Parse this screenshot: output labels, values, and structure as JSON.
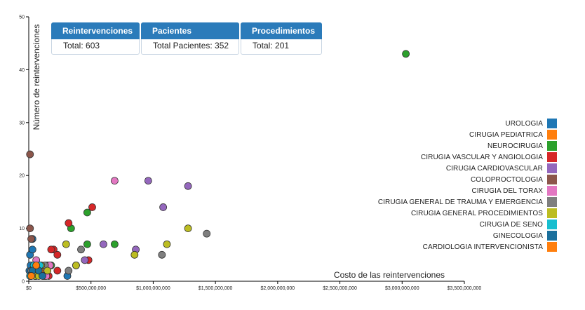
{
  "kpis": [
    {
      "title": "Reintervenciones",
      "value": "Total: 603"
    },
    {
      "title": "Pacientes",
      "value": "Total Pacientes: 352"
    },
    {
      "title": "Procedimientos",
      "value": "Total: 201"
    }
  ],
  "chart_data": {
    "type": "scatter",
    "title": "",
    "xlabel": "Costo de las reintervenciones",
    "ylabel": "Número de reintervenciones",
    "xlim": [
      0,
      3500000000
    ],
    "ylim": [
      0,
      50
    ],
    "x_ticks": [
      0,
      500000000,
      1000000000,
      1500000000,
      2000000000,
      2500000000,
      3000000000,
      3500000000
    ],
    "x_tick_labels": [
      "$0",
      "$500,000,000",
      "$1,000,000,000",
      "$1,500,000,000",
      "$2,000,000,000",
      "$2,500,000,000",
      "$3,000,000,000",
      "$3,500,000,000"
    ],
    "y_ticks": [
      0,
      10,
      20,
      30,
      40,
      50
    ],
    "y_tick_labels": [
      "0",
      "10",
      "20",
      "30",
      "40",
      "50"
    ],
    "legend_position": "right",
    "series": [
      {
        "name": "UROLOGIA",
        "color": "#1f77b4",
        "points": [
          [
            10000000,
            5
          ],
          [
            30000000,
            6
          ],
          [
            30000000,
            8
          ],
          [
            20000000,
            1
          ],
          [
            5000000,
            2
          ],
          [
            15000000,
            3
          ],
          [
            35000000,
            2
          ],
          [
            310000000,
            1
          ],
          [
            50000000,
            1
          ]
        ]
      },
      {
        "name": "CIRUGIA PEDIATRICA",
        "color": "#ff7f0e",
        "points": [
          [
            60000000,
            1
          ],
          [
            40000000,
            2
          ],
          [
            120000000,
            1
          ],
          [
            90000000,
            2
          ]
        ]
      },
      {
        "name": "NEUROCIRUGIA",
        "color": "#2ca02c",
        "points": [
          [
            3030000000,
            43
          ],
          [
            470000000,
            13
          ],
          [
            340000000,
            10
          ],
          [
            470000000,
            7
          ],
          [
            690000000,
            7
          ],
          [
            130000000,
            1
          ],
          [
            180000000,
            3
          ]
        ]
      },
      {
        "name": "CIRUGIA VASCULAR Y ANGIOLOGIA",
        "color": "#d62728",
        "points": [
          [
            510000000,
            14
          ],
          [
            320000000,
            11
          ],
          [
            200000000,
            6
          ],
          [
            180000000,
            6
          ],
          [
            230000000,
            5
          ],
          [
            480000000,
            4
          ],
          [
            230000000,
            2
          ],
          [
            160000000,
            1
          ]
        ]
      },
      {
        "name": "CIRUGIA CARDIOVASCULAR",
        "color": "#9467bd",
        "points": [
          [
            960000000,
            19
          ],
          [
            1280000000,
            18
          ],
          [
            1080000000,
            14
          ],
          [
            600000000,
            7
          ],
          [
            860000000,
            6
          ],
          [
            450000000,
            4
          ],
          [
            380000000,
            3
          ],
          [
            80000000,
            2
          ]
        ]
      },
      {
        "name": "COLOPROCTOLOGIA",
        "color": "#8c564b",
        "points": [
          [
            10000000,
            24
          ],
          [
            10000000,
            10
          ],
          [
            20000000,
            8
          ],
          [
            60000000,
            2
          ],
          [
            150000000,
            3
          ]
        ]
      },
      {
        "name": "CIRUGIA DEL TORAX",
        "color": "#e377c2",
        "points": [
          [
            690000000,
            19
          ],
          [
            170000000,
            3
          ],
          [
            60000000,
            4
          ],
          [
            140000000,
            1
          ]
        ]
      },
      {
        "name": "CIRUGIA GENERAL DE TRAUMA Y EMERGENCIA",
        "color": "#7f7f7f",
        "points": [
          [
            1430000000,
            9
          ],
          [
            1070000000,
            5
          ],
          [
            420000000,
            6
          ],
          [
            320000000,
            2
          ],
          [
            130000000,
            3
          ],
          [
            20000000,
            2
          ]
        ]
      },
      {
        "name": "CIRUGIA GENERAL PROCEDIMIENTOS",
        "color": "#bcbd22",
        "points": [
          [
            1280000000,
            10
          ],
          [
            1110000000,
            7
          ],
          [
            300000000,
            7
          ],
          [
            850000000,
            5
          ],
          [
            100000000,
            3
          ],
          [
            50000000,
            1
          ],
          [
            150000000,
            2
          ],
          [
            80000000,
            1
          ],
          [
            380000000,
            3
          ]
        ]
      },
      {
        "name": "CIRUGIA DE SENO",
        "color": "#17becf",
        "points": [
          [
            40000000,
            3
          ],
          [
            90000000,
            3
          ],
          [
            10000000,
            1
          ]
        ]
      },
      {
        "name": "GINECOLOGIA",
        "color": "#1a6f9c",
        "points": [
          [
            30000000,
            2
          ],
          [
            80000000,
            2
          ],
          [
            110000000,
            1
          ]
        ]
      },
      {
        "name": "CARDIOLOGIA INTERVENCIONISTA",
        "color": "#ff7f0e",
        "points": [
          [
            20000000,
            1
          ],
          [
            60000000,
            3
          ]
        ]
      }
    ]
  }
}
